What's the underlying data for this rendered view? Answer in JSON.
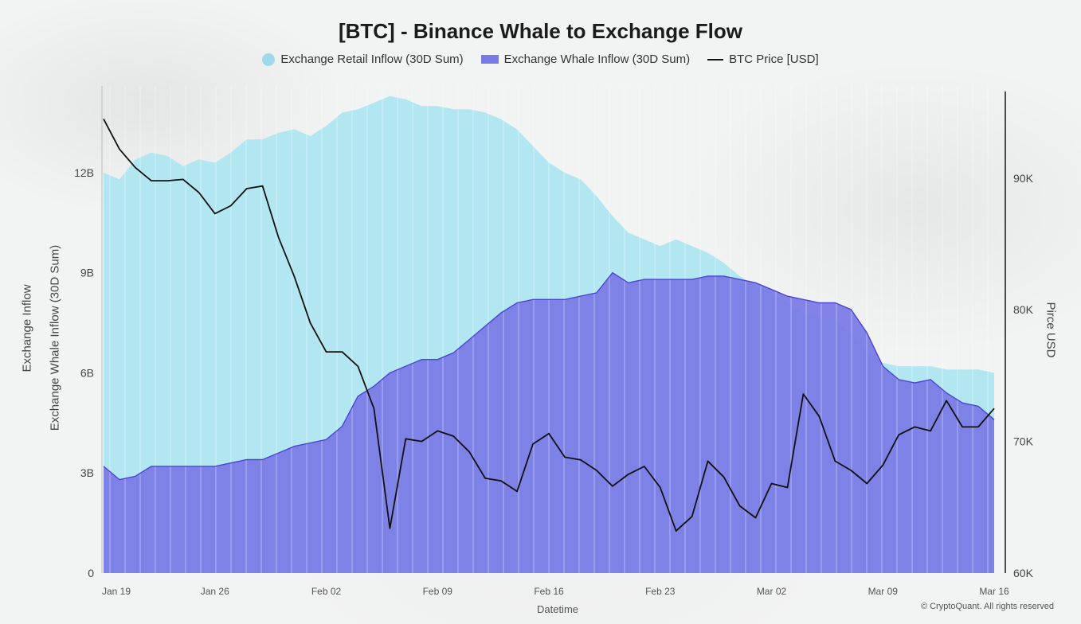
{
  "title": "[BTC] - Binance Whale to Exchange Flow",
  "legend": {
    "retail": "Exchange Retail Inflow (30D Sum)",
    "whale": "Exchange Whale Inflow (30D Sum)",
    "price": "BTC Price [USD]"
  },
  "axes": {
    "left_label_1": "Exchange Inflow",
    "left_label_2": "Exchange Whale Inflow (30D Sum)",
    "right_label": "Pirce USD",
    "x_label": "Datetime"
  },
  "credit": "© CryptoQuant. All rights reserved",
  "colors": {
    "retail": "#b2e7f2",
    "whale": "#7a7ae6",
    "whale_line": "#4a46d2",
    "price": "#111111"
  },
  "chart_data": {
    "type": "area",
    "title": "[BTC] - Binance Whale to Exchange Flow",
    "xlabel": "Datetime",
    "ylabel_left": "Exchange Inflow",
    "ylabel_right": "Pirce USD",
    "x_ticks": [
      "Jan 19",
      "Jan 26",
      "Feb 02",
      "Feb 09",
      "Feb 16",
      "Feb 23",
      "Mar 02",
      "Mar 09",
      "Mar 16"
    ],
    "y_left_ticks": [
      "0",
      "3B",
      "6B",
      "9B",
      "12B"
    ],
    "y_right_ticks": [
      "60K",
      "70K",
      "80K",
      "90K"
    ],
    "ylim_left": [
      0,
      14.6
    ],
    "ylim_right": [
      60000,
      97000
    ],
    "x": [
      "Jan 19",
      "Jan 20",
      "Jan 21",
      "Jan 22",
      "Jan 23",
      "Jan 24",
      "Jan 25",
      "Jan 26",
      "Jan 27",
      "Jan 28",
      "Jan 29",
      "Jan 30",
      "Jan 31",
      "Feb 01",
      "Feb 02",
      "Feb 03",
      "Feb 04",
      "Feb 05",
      "Feb 06",
      "Feb 07",
      "Feb 08",
      "Feb 09",
      "Feb 10",
      "Feb 11",
      "Feb 12",
      "Feb 13",
      "Feb 14",
      "Feb 15",
      "Feb 16",
      "Feb 17",
      "Feb 18",
      "Feb 19",
      "Feb 20",
      "Feb 21",
      "Feb 22",
      "Feb 23",
      "Feb 24",
      "Feb 25",
      "Feb 26",
      "Feb 27",
      "Feb 28",
      "Mar 01",
      "Mar 02",
      "Mar 03",
      "Mar 04",
      "Mar 05",
      "Mar 06",
      "Mar 07",
      "Mar 08",
      "Mar 09",
      "Mar 10",
      "Mar 11",
      "Mar 12",
      "Mar 13",
      "Mar 14",
      "Mar 15",
      "Mar 16"
    ],
    "series": [
      {
        "name": "Exchange Retail Inflow (30D Sum)",
        "axis": "left",
        "unit": "B",
        "values": [
          12.0,
          11.8,
          12.4,
          12.6,
          12.5,
          12.2,
          12.4,
          12.3,
          12.6,
          13.0,
          13.0,
          13.2,
          13.3,
          13.1,
          13.4,
          13.8,
          13.9,
          14.1,
          14.3,
          14.2,
          14.0,
          14.0,
          13.9,
          13.9,
          13.8,
          13.6,
          13.3,
          12.8,
          12.3,
          12.0,
          11.8,
          11.3,
          10.7,
          10.2,
          10.0,
          9.8,
          10.0,
          9.8,
          9.6,
          9.3,
          8.9,
          8.6,
          8.4,
          8.1,
          7.8,
          7.7,
          7.6,
          7.2,
          6.7,
          6.3,
          6.2,
          6.2,
          6.2,
          6.1,
          6.1,
          6.1,
          6.0
        ]
      },
      {
        "name": "Exchange Whale Inflow (30D Sum)",
        "axis": "left",
        "unit": "B",
        "values": [
          3.2,
          2.8,
          2.9,
          3.2,
          3.2,
          3.2,
          3.2,
          3.2,
          3.3,
          3.4,
          3.4,
          3.6,
          3.8,
          3.9,
          4.0,
          4.4,
          5.3,
          5.6,
          6.0,
          6.2,
          6.4,
          6.4,
          6.6,
          7.0,
          7.4,
          7.8,
          8.1,
          8.2,
          8.2,
          8.2,
          8.3,
          8.4,
          9.0,
          8.7,
          8.8,
          8.8,
          8.8,
          8.8,
          8.9,
          8.9,
          8.8,
          8.7,
          8.5,
          8.3,
          8.2,
          8.1,
          8.1,
          7.9,
          7.2,
          6.2,
          5.8,
          5.7,
          5.8,
          5.4,
          5.1,
          5.0,
          4.6
        ]
      },
      {
        "name": "BTC Price [USD]",
        "axis": "right",
        "unit": "USD",
        "values": [
          94500,
          92200,
          90800,
          89800,
          89800,
          89900,
          88900,
          87300,
          87900,
          89200,
          89400,
          85500,
          82500,
          79000,
          76800,
          76800,
          75700,
          72500,
          63400,
          70200,
          70000,
          70800,
          70400,
          69200,
          67200,
          67000,
          66200,
          69800,
          70600,
          68800,
          68600,
          67800,
          66600,
          67500,
          68100,
          66500,
          63200,
          64300,
          68500,
          67300,
          65100,
          64200,
          66800,
          66500,
          73600,
          71900,
          68500,
          67800,
          66800,
          68200,
          70500,
          71100,
          70800,
          73100,
          71100,
          71100,
          72500
        ]
      }
    ],
    "grid": false,
    "legend_position": "top-center"
  }
}
